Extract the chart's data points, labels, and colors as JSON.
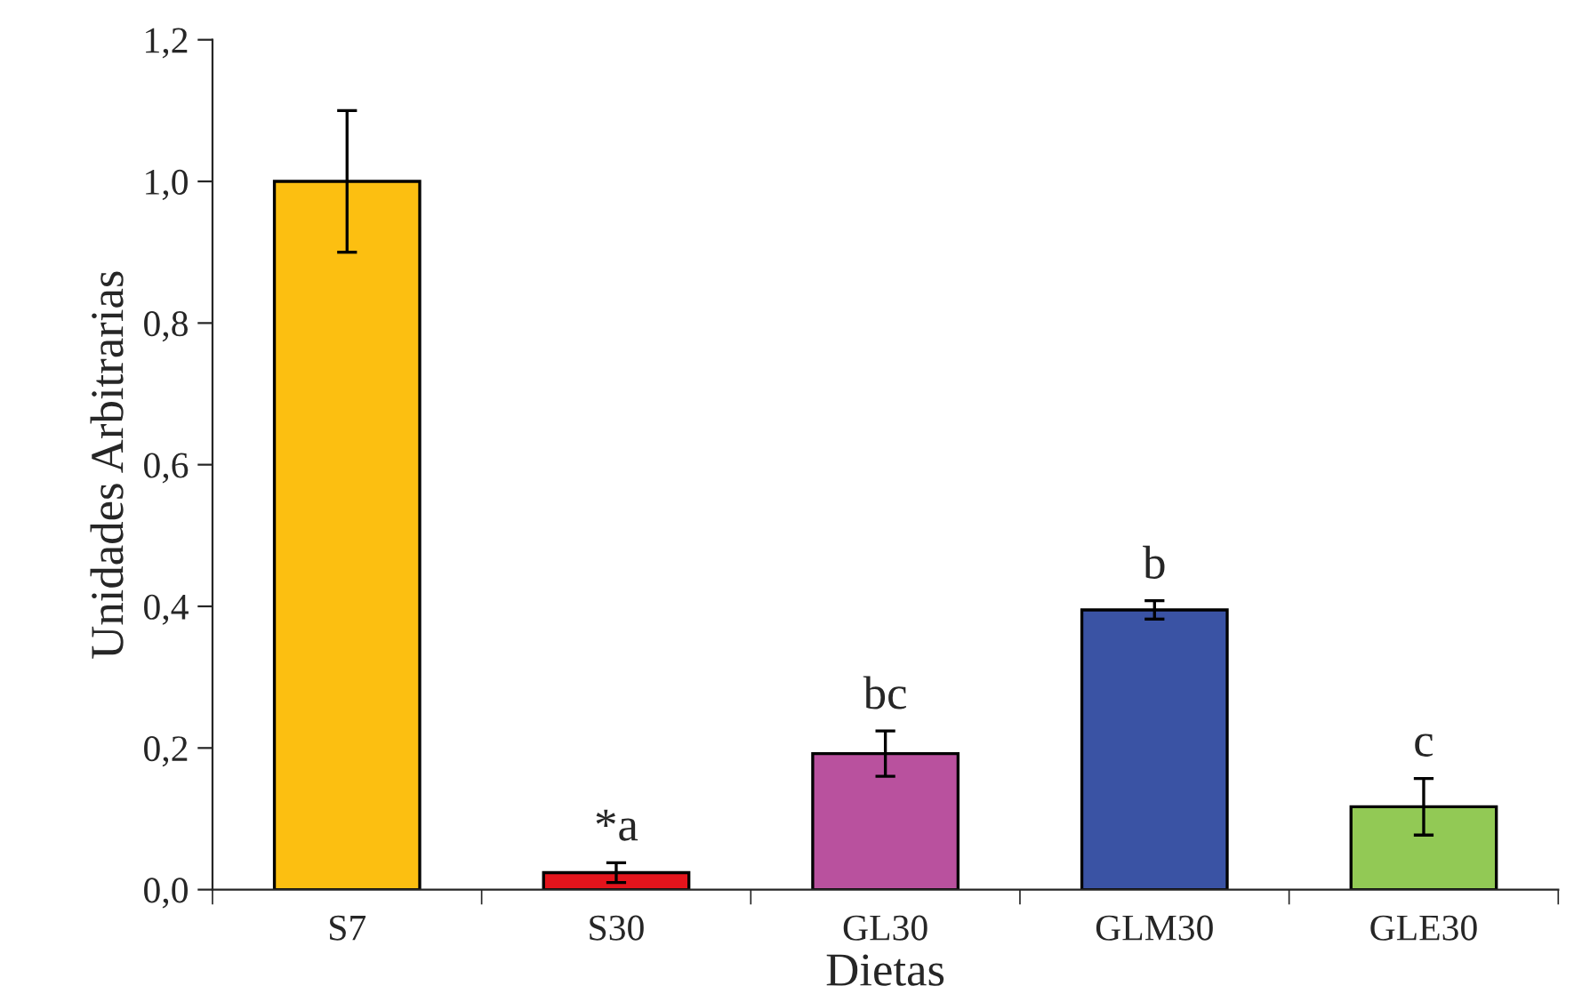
{
  "chart_data": {
    "type": "bar",
    "xlabel": "Dietas",
    "ylabel": "Unidades Arbitrarias",
    "categories": [
      "S7",
      "S30",
      "GL30",
      "GLM30",
      "GLE30"
    ],
    "values": [
      1.0,
      0.024,
      0.192,
      0.395,
      0.117
    ],
    "errors": [
      0.1,
      0.014,
      0.032,
      0.013,
      0.04
    ],
    "colors": [
      "#fcbf11",
      "#e3141c",
      "#b9519e",
      "#3a53a4",
      "#92c955"
    ],
    "ylim": [
      0,
      1.2
    ],
    "yticks": [
      {
        "value": 0,
        "label": "0,0"
      },
      {
        "value": 0.2,
        "label": "0,2"
      },
      {
        "value": 0.4,
        "label": "0,4"
      },
      {
        "value": 0.6,
        "label": "0,6"
      },
      {
        "value": 0.8,
        "label": "0,8"
      },
      {
        "value": 1.0,
        "label": "1,0"
      },
      {
        "value": 1.2,
        "label": "1,2"
      }
    ],
    "annotations": [
      {
        "text": "*a",
        "x": "S30",
        "y": 0.038
      },
      {
        "text": "bc",
        "x": "GL30",
        "y": 0.224
      },
      {
        "text": "b",
        "x": "GLM30",
        "y": 0.408
      },
      {
        "text": "c",
        "x": "GLE30",
        "y": 0.157
      }
    ],
    "grid": false
  }
}
